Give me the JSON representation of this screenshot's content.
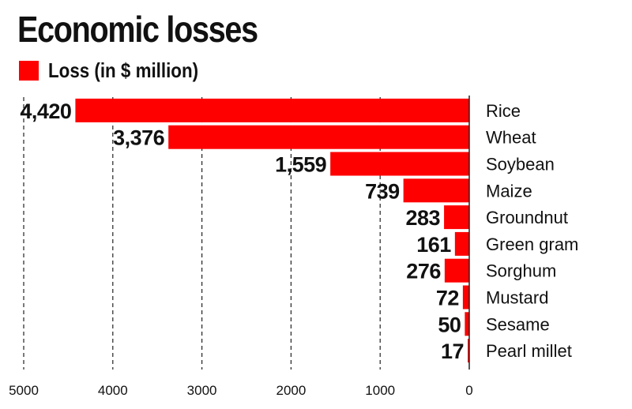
{
  "chart_data": {
    "type": "bar",
    "orientation": "horizontal",
    "title": "Economic losses",
    "legend": {
      "label": "Loss (in $ million)",
      "color": "#ff0000",
      "position": "top-left"
    },
    "categories": [
      "Rice",
      "Wheat",
      "Soybean",
      "Maize",
      "Groundnut",
      "Green gram",
      "Sorghum",
      "Mustard",
      "Sesame",
      "Pearl millet"
    ],
    "values": [
      4420,
      3376,
      1559,
      739,
      283,
      161,
      276,
      72,
      50,
      17
    ],
    "value_labels": [
      "4,420",
      "3,376",
      "1,559",
      "739",
      "283",
      "161",
      "276",
      "72",
      "50",
      "17"
    ],
    "x_axis": {
      "reversed": true,
      "range": [
        0,
        5000
      ],
      "ticks": [
        5000,
        4000,
        3000,
        2000,
        1000,
        0
      ]
    },
    "grid": "vertical dashed",
    "bar_color": "#ff0000"
  }
}
